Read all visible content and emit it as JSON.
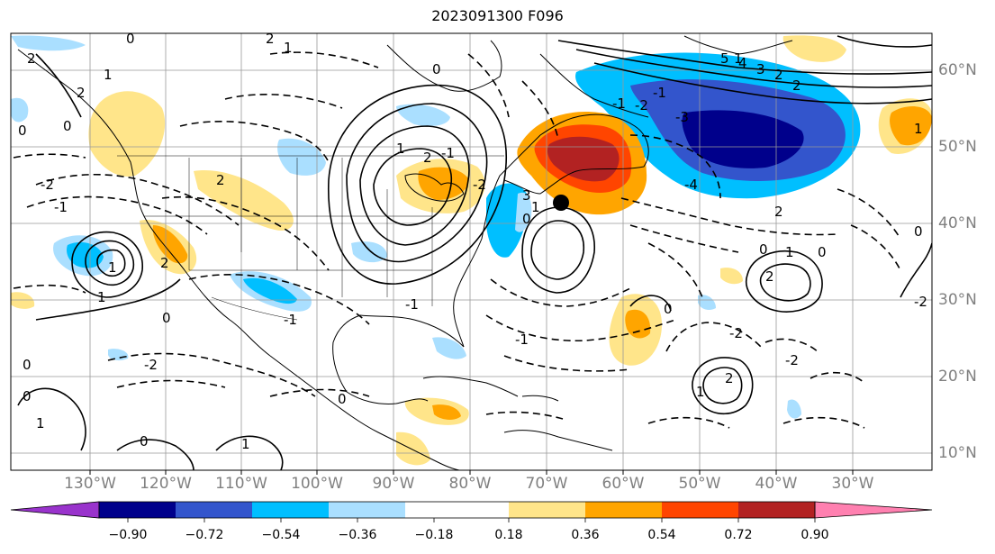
{
  "title": "2023091300 F096",
  "lon_labels": [
    "130°W",
    "120°W",
    "110°W",
    "100°W",
    "90°W",
    "80°W",
    "70°W",
    "60°W",
    "50°W",
    "40°W",
    "30°W"
  ],
  "lat_labels": [
    "60°N",
    "50°N",
    "40°N",
    "30°N",
    "20°N",
    "10°N"
  ],
  "colorbar": {
    "ticks": [
      "−0.90",
      "−0.72",
      "−0.54",
      "−0.36",
      "−0.18",
      "0.18",
      "0.36",
      "0.54",
      "0.72",
      "0.90"
    ],
    "colors": [
      "#9933cc",
      "#00008b",
      "#3355cc",
      "#00bfff",
      "#aadfff",
      "#ffffff",
      "#ffe58a",
      "#ffa500",
      "#ff4500",
      "#b22222",
      "#ff80b0"
    ]
  },
  "contour_labels": [
    "0",
    "2",
    "1",
    "0",
    "2",
    "-2",
    "-1",
    "0",
    "1",
    "2",
    "3",
    "4",
    "5",
    "-1",
    "-2",
    "-3",
    "-4",
    "0",
    "1",
    "2",
    "-1",
    "2",
    "1",
    "0",
    "-2",
    "-1",
    "0",
    "1",
    "2",
    "3",
    "0",
    "1",
    "0",
    "2",
    "1",
    "0",
    "2",
    "-1",
    "0",
    "1",
    "-2",
    "0",
    "1",
    "-1",
    "-2",
    "1",
    "0",
    "1",
    "2",
    "0",
    "2",
    "1",
    "2",
    "-2",
    "-1",
    "0",
    "-2"
  ],
  "storm_marker": "black-dot-storm-center"
}
